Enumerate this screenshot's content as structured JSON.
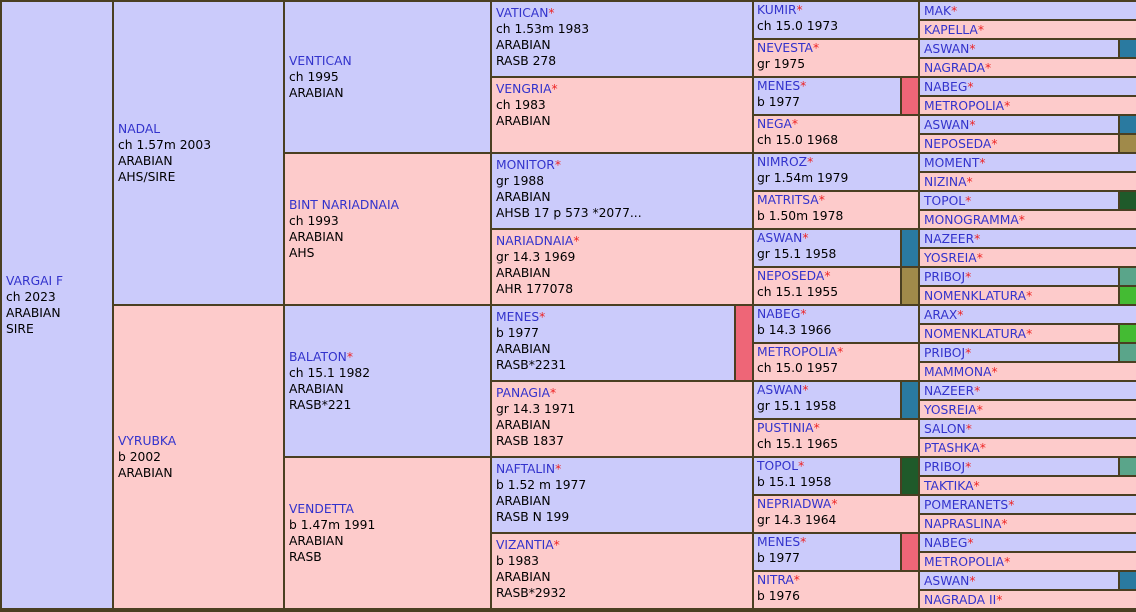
{
  "pedigree": {
    "g1": [
      {
        "name": "VARGAI F",
        "star": false,
        "lines": [
          "ch 2023",
          "ARABIAN",
          "SIRE"
        ],
        "sex": "m"
      }
    ],
    "g2": [
      {
        "name": "NADAL",
        "star": false,
        "lines": [
          "ch 1.57m 2003",
          "ARABIAN",
          "AHS/SIRE"
        ],
        "sex": "m"
      },
      {
        "name": "VYRUBKA",
        "star": false,
        "lines": [
          "b 2002",
          "ARABIAN"
        ],
        "sex": "f"
      }
    ],
    "g3": [
      {
        "name": "VENTICAN",
        "star": false,
        "lines": [
          "ch 1995",
          "ARABIAN"
        ],
        "sex": "m"
      },
      {
        "name": "BINT NARIADNAIA",
        "star": false,
        "lines": [
          "ch 1993",
          "ARABIAN",
          "AHS"
        ],
        "sex": "f"
      },
      {
        "name": "BALATON",
        "star": true,
        "lines": [
          "ch 15.1 1982",
          "ARABIAN",
          "RASB*221"
        ],
        "sex": "m"
      },
      {
        "name": "VENDETTA",
        "star": false,
        "lines": [
          "b 1.47m 1991",
          "ARABIAN",
          "RASB"
        ],
        "sex": "f"
      }
    ],
    "g4": [
      {
        "name": "VATICAN",
        "star": true,
        "lines": [
          "ch 1.53m 1983",
          "ARABIAN",
          "RASB 278"
        ],
        "sex": "m"
      },
      {
        "name": "VENGRIA",
        "star": true,
        "lines": [
          "ch 1983",
          "ARABIAN"
        ],
        "sex": "f"
      },
      {
        "name": "MONITOR",
        "star": true,
        "lines": [
          "gr 1988",
          "ARABIAN",
          "AHSB 17 p 573 *2077..."
        ],
        "sex": "m"
      },
      {
        "name": "NARIADNAIA",
        "star": true,
        "lines": [
          "gr 14.3 1969",
          "ARABIAN",
          "AHR 177078"
        ],
        "sex": "f"
      },
      {
        "name": "MENES",
        "star": true,
        "lines": [
          "b 1977",
          "ARABIAN",
          "RASB*2231"
        ],
        "sex": "m",
        "strip": "#ee6677"
      },
      {
        "name": "PANAGIA",
        "star": true,
        "lines": [
          "gr 14.3 1971",
          "ARABIAN",
          "RASB 1837"
        ],
        "sex": "f"
      },
      {
        "name": "NAFTALIN",
        "star": true,
        "lines": [
          "b 1.52 m 1977",
          "ARABIAN",
          "RASB N 199"
        ],
        "sex": "m"
      },
      {
        "name": "VIZANTIA",
        "star": true,
        "lines": [
          "b 1983",
          "ARABIAN",
          "RASB*2932"
        ],
        "sex": "f"
      }
    ],
    "g5": [
      {
        "name": "KUMIR",
        "star": true,
        "lines": [
          "ch 15.0 1973"
        ],
        "sex": "m"
      },
      {
        "name": "NEVESTA",
        "star": true,
        "lines": [
          "gr 1975"
        ],
        "sex": "f"
      },
      {
        "name": "MENES",
        "star": true,
        "lines": [
          "b 1977"
        ],
        "sex": "m",
        "strip": "#ee6677"
      },
      {
        "name": "NEGA",
        "star": true,
        "lines": [
          "ch 15.0 1968"
        ],
        "sex": "f"
      },
      {
        "name": "NIMROZ",
        "star": true,
        "lines": [
          "gr 1.54m 1979"
        ],
        "sex": "m"
      },
      {
        "name": "MATRITSA",
        "star": true,
        "lines": [
          "b 1.50m 1978"
        ],
        "sex": "f"
      },
      {
        "name": "ASWAN",
        "star": true,
        "lines": [
          "gr 15.1 1958"
        ],
        "sex": "m",
        "strip": "#2a7aa0"
      },
      {
        "name": "NEPOSEDA",
        "star": true,
        "lines": [
          "ch 15.1 1955"
        ],
        "sex": "f",
        "strip": "#a08a4a"
      },
      {
        "name": "NABEG",
        "star": true,
        "lines": [
          "b 14.3 1966"
        ],
        "sex": "m"
      },
      {
        "name": "METROPOLIA",
        "star": true,
        "lines": [
          "ch 15.0 1957"
        ],
        "sex": "f"
      },
      {
        "name": "ASWAN",
        "star": true,
        "lines": [
          "gr 15.1 1958"
        ],
        "sex": "m",
        "strip": "#2a7aa0"
      },
      {
        "name": "PUSTINIA",
        "star": true,
        "lines": [
          "ch 15.1 1965"
        ],
        "sex": "f"
      },
      {
        "name": "TOPOL",
        "star": true,
        "lines": [
          "b 15.1 1958"
        ],
        "sex": "m",
        "strip": "#1f5a2a"
      },
      {
        "name": "NEPRIADWA",
        "star": true,
        "lines": [
          "gr 14.3 1964"
        ],
        "sex": "f"
      },
      {
        "name": "MENES",
        "star": true,
        "lines": [
          "b 1977"
        ],
        "sex": "m",
        "strip": "#ee6677"
      },
      {
        "name": "NITRA",
        "star": true,
        "lines": [
          "b 1976"
        ],
        "sex": "f"
      }
    ],
    "g6": [
      {
        "name": "MAK",
        "star": true,
        "sex": "m"
      },
      {
        "name": "KAPELLA",
        "star": true,
        "sex": "f"
      },
      {
        "name": "ASWAN",
        "star": true,
        "sex": "m",
        "strip": "#2a7aa0"
      },
      {
        "name": "NAGRADA",
        "star": true,
        "sex": "f"
      },
      {
        "name": "NABEG",
        "star": true,
        "sex": "m"
      },
      {
        "name": "METROPOLIA",
        "star": true,
        "sex": "f"
      },
      {
        "name": "ASWAN",
        "star": true,
        "sex": "m",
        "strip": "#2a7aa0"
      },
      {
        "name": "NEPOSEDA",
        "star": true,
        "sex": "f",
        "strip": "#a08a4a"
      },
      {
        "name": "MOMENT",
        "star": true,
        "sex": "m"
      },
      {
        "name": "NIZINA",
        "star": true,
        "sex": "f"
      },
      {
        "name": "TOPOL",
        "star": true,
        "sex": "m",
        "strip": "#1f5a2a"
      },
      {
        "name": "MONOGRAMMA",
        "star": true,
        "sex": "f"
      },
      {
        "name": "NAZEER",
        "star": true,
        "sex": "m"
      },
      {
        "name": "YOSREIA",
        "star": true,
        "sex": "f"
      },
      {
        "name": "PRIBOJ",
        "star": true,
        "sex": "m",
        "strip": "#5aa58a"
      },
      {
        "name": "NOMENKLATURA",
        "star": true,
        "sex": "f",
        "strip": "#44bb33"
      },
      {
        "name": "ARAX",
        "star": true,
        "sex": "m"
      },
      {
        "name": "NOMENKLATURA",
        "star": true,
        "sex": "f",
        "strip": "#44bb33"
      },
      {
        "name": "PRIBOJ",
        "star": true,
        "sex": "m",
        "strip": "#5aa58a"
      },
      {
        "name": "MAMMONA",
        "star": true,
        "sex": "f"
      },
      {
        "name": "NAZEER",
        "star": true,
        "sex": "m"
      },
      {
        "name": "YOSREIA",
        "star": true,
        "sex": "f"
      },
      {
        "name": "SALON",
        "star": true,
        "sex": "m"
      },
      {
        "name": "PTASHKA",
        "star": true,
        "sex": "f"
      },
      {
        "name": "PRIBOJ",
        "star": true,
        "sex": "m",
        "strip": "#5aa58a"
      },
      {
        "name": "TAKTIKA",
        "star": true,
        "sex": "f"
      },
      {
        "name": "POMERANETS",
        "star": true,
        "sex": "m"
      },
      {
        "name": "NAPRASLINA",
        "star": true,
        "sex": "f"
      },
      {
        "name": "NABEG",
        "star": true,
        "sex": "m"
      },
      {
        "name": "METROPOLIA",
        "star": true,
        "sex": "f"
      },
      {
        "name": "ASWAN",
        "star": true,
        "sex": "m",
        "strip": "#2a7aa0"
      },
      {
        "name": "NAGRADA II",
        "star": true,
        "sex": "f"
      }
    ]
  },
  "colors": {
    "male_bg": "#cbcbfb",
    "female_bg": "#fdcbcb",
    "name_link": "#3333cc",
    "asterisk": "#ee2222",
    "grid": "#4a3f22"
  },
  "ui": {
    "star_symbol": "*"
  }
}
